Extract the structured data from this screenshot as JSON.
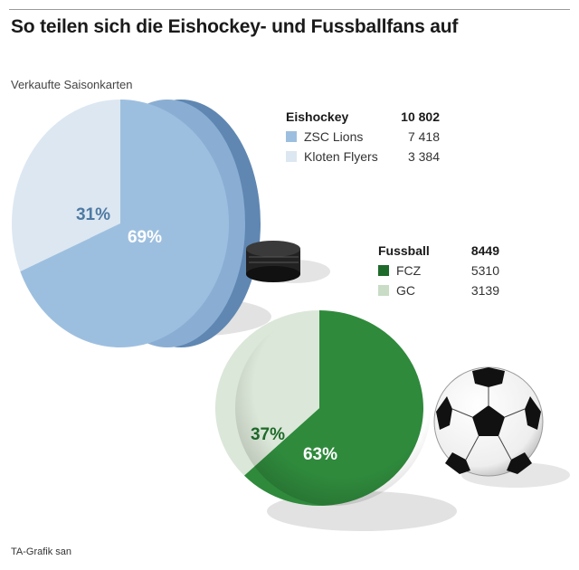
{
  "title": "So teilen sich die Eishockey- und Fussballfans auf",
  "subtitle": "Verkaufte Saisonkarten",
  "credit": "TA-Grafik san",
  "chart_data": [
    {
      "type": "pie",
      "name": "Eishockey",
      "total": "10 802",
      "slices": [
        {
          "label": "ZSC Lions",
          "value": 7418,
          "value_text": "7 418",
          "percent_text": "69%",
          "color": "#9dbfdf"
        },
        {
          "label": "Kloten Flyers",
          "value": 3384,
          "value_text": "3 384",
          "percent_text": "31%",
          "color": "#dce7f1"
        }
      ]
    },
    {
      "type": "pie",
      "name": "Fussball",
      "total": "8449",
      "slices": [
        {
          "label": "FCZ",
          "value": 5310,
          "value_text": "5310",
          "percent_text": "63%",
          "color": "#2f8a3c"
        },
        {
          "label": "GC",
          "value": 3139,
          "value_text": "3139",
          "percent_text": "37%",
          "color": "#dbe7d8"
        }
      ]
    }
  ],
  "colors": {
    "hockey_label_small": "#4e7aa3",
    "football_label_small": "#1e6a2a",
    "puck_side": "#5f87b2",
    "puck": "#222222"
  },
  "icons": [
    "hockey-puck-icon",
    "soccer-ball-icon"
  ]
}
